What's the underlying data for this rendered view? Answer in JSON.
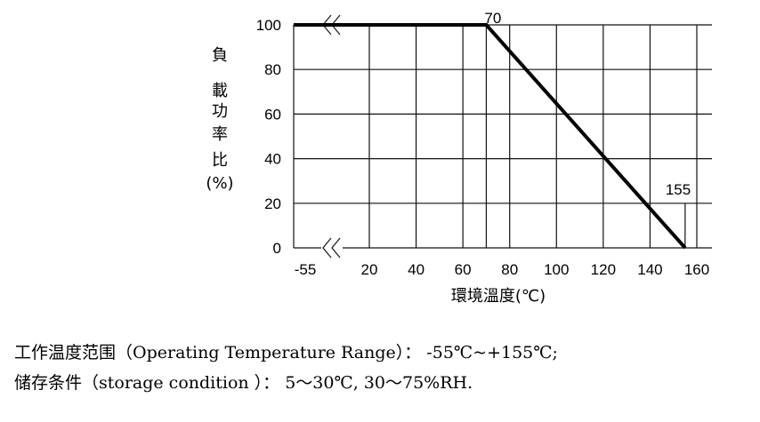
{
  "chart_data": {
    "type": "line",
    "title": "",
    "ylabel": [
      "負",
      "載",
      "功",
      "率",
      "比",
      "(%)"
    ],
    "xlabel": "環境溫度(℃)",
    "x_tick_labels": [
      "-55",
      "20",
      "40",
      "60",
      "80",
      "100",
      "120",
      "140",
      "160"
    ],
    "y_tick_labels": [
      "0",
      "20",
      "40",
      "60",
      "80",
      "100"
    ],
    "ylim": [
      0,
      100
    ],
    "grid": true,
    "axis_break": true,
    "series": [
      {
        "x": [
          -55,
          70,
          155
        ],
        "y": [
          100,
          100,
          0
        ]
      }
    ],
    "annotations": [
      {
        "text": "70",
        "x": 70,
        "y": 100
      },
      {
        "text": "155",
        "x": 155,
        "y": 0
      }
    ]
  },
  "notes": {
    "operating_range": "工作温度范围（Operating Temperature Range）： -55℃~+155℃;",
    "storage": "储存条件（storage condition ）： 5～30℃, 30～75%RH."
  }
}
